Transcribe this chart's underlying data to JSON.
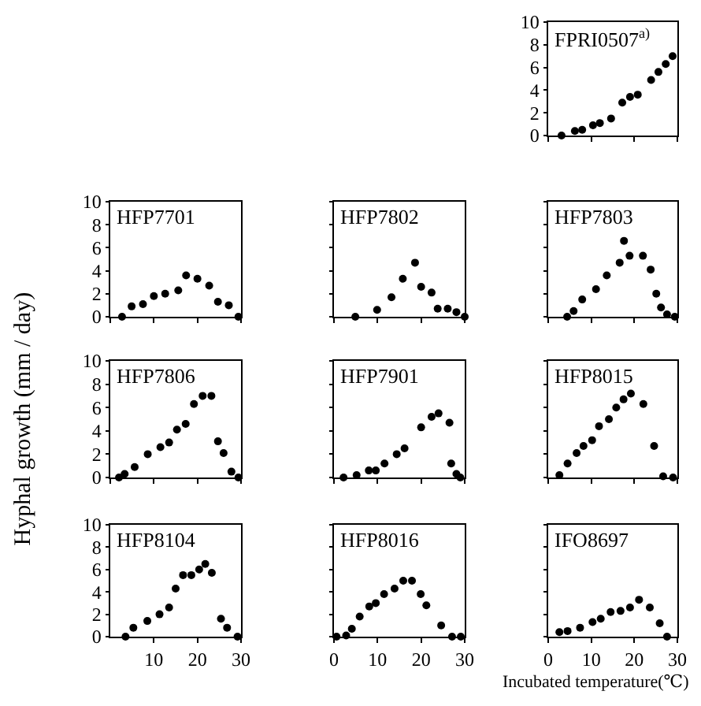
{
  "chart_data": [
    {
      "type": "scatter",
      "title": "FPRI0507$^{a)}$",
      "x": [
        3.1,
        6.2,
        7.9,
        10.4,
        12,
        14.6,
        17.2,
        19,
        20.8,
        23.9,
        25.6,
        27.3,
        28.9
      ],
      "values": [
        0,
        0.4,
        0.5,
        0.9,
        1.1,
        1.5,
        2.9,
        3.4,
        3.6,
        4.9,
        5.6,
        6.3,
        7.0
      ],
      "color": "#000000",
      "marker": "circle",
      "xlim": [
        0,
        30
      ],
      "ylim": [
        0,
        10
      ],
      "xticks": [
        0,
        10,
        20,
        30
      ],
      "yticks": [
        0,
        2,
        4,
        6,
        8,
        10
      ],
      "tick_labels": "y"
    },
    {
      "type": "scatter",
      "title": "HFP7701",
      "x": [
        2.7,
        4.9,
        7.5,
        10,
        12.6,
        15.6,
        17.4,
        20,
        22.7,
        24.7,
        27.2,
        29.4
      ],
      "values": [
        0,
        0.9,
        1.1,
        1.8,
        2.0,
        2.3,
        3.6,
        3.3,
        2.7,
        1.3,
        1.0,
        0
      ],
      "color": "#000000",
      "marker": "circle",
      "xlim": [
        0,
        30
      ],
      "ylim": [
        0,
        10
      ],
      "xticks": [
        0,
        10,
        20,
        30
      ],
      "yticks": [
        0,
        2,
        4,
        6,
        8,
        10
      ],
      "tick_labels": "y"
    },
    {
      "type": "scatter",
      "title": "HFP7802",
      "x": [
        4.9,
        9.9,
        13.2,
        15.8,
        18.6,
        20,
        22.4,
        23.8,
        26.1,
        28.1,
        30
      ],
      "values": [
        0,
        0.6,
        1.7,
        3.3,
        4.7,
        2.6,
        2.1,
        0.7,
        0.7,
        0.4,
        0
      ],
      "color": "#000000",
      "marker": "circle",
      "xlim": [
        0,
        30
      ],
      "ylim": [
        0,
        10
      ],
      "xticks": [
        0,
        10,
        20,
        30
      ],
      "yticks": [
        0,
        2,
        4,
        6,
        8,
        10
      ],
      "tick_labels": false
    },
    {
      "type": "scatter",
      "title": "HFP7803",
      "x": [
        4.4,
        5.9,
        7.9,
        11.1,
        13.6,
        16.6,
        17.6,
        18.9,
        22,
        23.8,
        25.1,
        26.2,
        27.6,
        29.4
      ],
      "values": [
        0,
        0.5,
        1.5,
        2.4,
        3.6,
        4.7,
        6.6,
        5.3,
        5.3,
        4.1,
        2.0,
        0.8,
        0.2,
        0
      ],
      "color": "#000000",
      "marker": "circle",
      "xlim": [
        0,
        30
      ],
      "ylim": [
        0,
        10
      ],
      "xticks": [
        0,
        10,
        20,
        30
      ],
      "yticks": [
        0,
        2,
        4,
        6,
        8,
        10
      ],
      "tick_labels": false
    },
    {
      "type": "scatter",
      "title": "HFP7806",
      "ylabel": "Hyphal growth (mm / day)",
      "x": [
        2,
        3.3,
        5.6,
        8.6,
        11.5,
        13.5,
        15.3,
        17.3,
        19.2,
        21.2,
        23.2,
        24.7,
        26,
        27.8,
        29.4
      ],
      "values": [
        0,
        0.3,
        0.9,
        2,
        2.6,
        3,
        4.1,
        4.6,
        6.3,
        7,
        7,
        3.1,
        2.1,
        0.5,
        0
      ],
      "color": "#000000",
      "marker": "circle",
      "xlim": [
        0,
        30
      ],
      "ylim": [
        0,
        10
      ],
      "xticks": [
        0,
        10,
        20,
        30
      ],
      "yticks": [
        0,
        2,
        4,
        6,
        8,
        10
      ],
      "tick_labels": "y"
    },
    {
      "type": "scatter",
      "title": "HFP7901",
      "x": [
        2.2,
        5.2,
        8,
        9.6,
        11.6,
        14.4,
        16.2,
        20,
        22.4,
        24,
        26.5,
        26.9,
        28.1,
        29
      ],
      "values": [
        0,
        0.2,
        0.6,
        0.6,
        1.2,
        2.0,
        2.5,
        4.3,
        5.2,
        5.5,
        4.7,
        1.2,
        0.3,
        0
      ],
      "color": "#000000",
      "marker": "circle",
      "xlim": [
        0,
        30
      ],
      "ylim": [
        0,
        10
      ],
      "xticks": [
        0,
        10,
        20,
        30
      ],
      "yticks": [
        0,
        2,
        4,
        6,
        8,
        10
      ],
      "tick_labels": false
    },
    {
      "type": "scatter",
      "title": "HFP8015",
      "x": [
        2.6,
        4.5,
        6.6,
        8.2,
        10.2,
        11.8,
        14.1,
        15.8,
        17.5,
        19.2,
        22.1,
        24.6,
        26.7,
        29
      ],
      "values": [
        0.2,
        1.2,
        2.1,
        2.7,
        3.2,
        4.4,
        5.0,
        6.0,
        6.7,
        7.2,
        6.3,
        2.7,
        0.1,
        0
      ],
      "color": "#000000",
      "marker": "circle",
      "xlim": [
        0,
        30
      ],
      "ylim": [
        0,
        10
      ],
      "xticks": [
        0,
        10,
        20,
        30
      ],
      "yticks": [
        0,
        2,
        4,
        6,
        8,
        10
      ],
      "tick_labels": false
    },
    {
      "type": "scatter",
      "title": "HFP8104",
      "x": [
        3.5,
        5.3,
        8.5,
        11.3,
        13.5,
        15,
        16.7,
        18.6,
        20.4,
        21.8,
        23.3,
        25.4,
        26.8,
        29.2
      ],
      "values": [
        0,
        0.8,
        1.4,
        2.0,
        2.6,
        4.3,
        5.5,
        5.5,
        6.0,
        6.5,
        5.7,
        1.6,
        0.8,
        0
      ],
      "color": "#000000",
      "marker": "circle",
      "xlim": [
        0,
        30
      ],
      "ylim": [
        0,
        10
      ],
      "xticks": [
        10,
        20,
        30
      ],
      "yticks": [
        0,
        2,
        4,
        6,
        8,
        10
      ]
    },
    {
      "type": "scatter",
      "title": "HFP8016",
      "x": [
        0.6,
        2.8,
        4.1,
        5.9,
        8.1,
        9.6,
        11.5,
        13.9,
        15.9,
        17.9,
        19.9,
        21.2,
        24.6,
        27.1,
        29.1
      ],
      "values": [
        0,
        0.1,
        0.7,
        1.8,
        2.7,
        3.0,
        3.8,
        4.3,
        5.0,
        5.0,
        3.8,
        2.8,
        1.0,
        0,
        0
      ],
      "color": "#000000",
      "marker": "circle",
      "xlim": [
        0,
        30
      ],
      "ylim": [
        0,
        10
      ],
      "xticks": [
        0,
        10,
        20,
        30
      ],
      "yticks": [
        0,
        2,
        4,
        6,
        8,
        10
      ],
      "tick_labels": "x"
    },
    {
      "type": "scatter",
      "title": "IFO8697",
      "xlabel": "Incubated temperature(℃)",
      "x": [
        2.6,
        4.5,
        7.4,
        10.3,
        12.2,
        14.5,
        16.8,
        19,
        21.1,
        23.6,
        25.9,
        27.6
      ],
      "values": [
        0.4,
        0.5,
        0.8,
        1.3,
        1.6,
        2.2,
        2.3,
        2.6,
        3.3,
        2.6,
        1.2,
        0
      ],
      "color": "#000000",
      "marker": "circle",
      "xlim": [
        0,
        30
      ],
      "ylim": [
        0,
        10
      ],
      "xticks": [
        0,
        10,
        20,
        30
      ],
      "yticks": [
        0,
        2,
        4,
        6,
        8,
        10
      ],
      "tick_labels": "x"
    }
  ]
}
